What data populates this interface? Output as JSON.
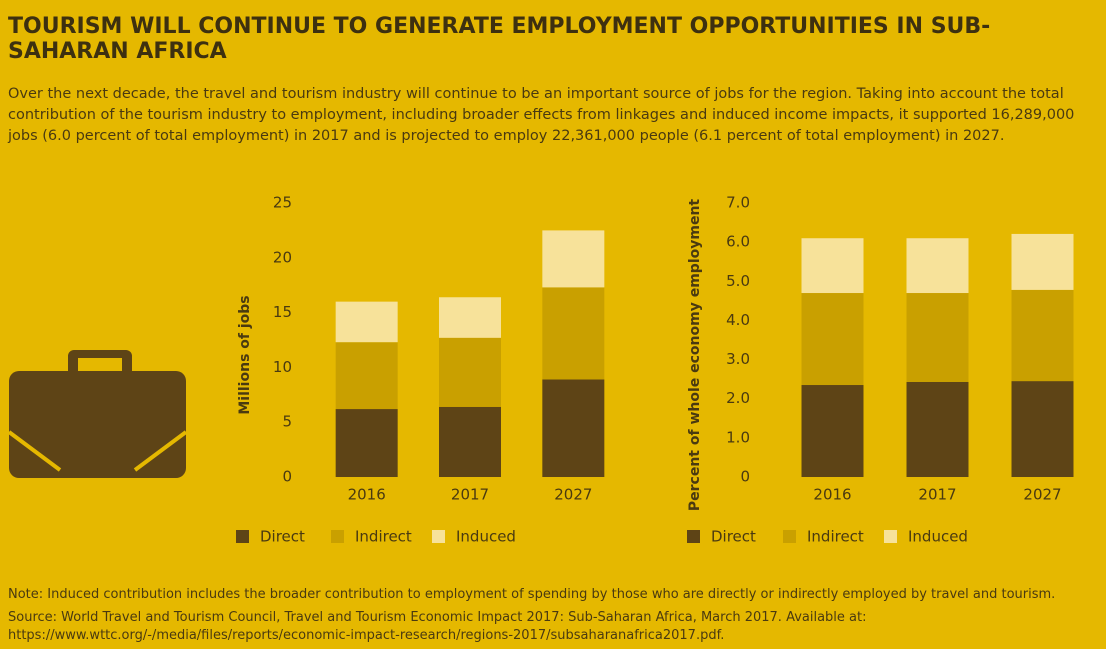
{
  "header": {
    "title": "TOURISM WILL CONTINUE TO GENERATE EMPLOYMENT OPPORTUNITIES IN SUB-SAHARAN AFRICA",
    "description": "Over the next decade, the travel and tourism industry will continue to be an important source of jobs for the region. Taking into account the total contribution of the tourism industry to employment, including broader effects from linkages and induced income impacts, it supported 16,289,000 jobs (6.0 percent of total employment) in 2017 and is projected to employ 22,361,000 people (6.1 percent of total employment) in 2027."
  },
  "chart_data": [
    {
      "type": "stacked_bar",
      "ylabel": "Millions of jobs",
      "categories": [
        "2016",
        "2017",
        "2027"
      ],
      "series": [
        {
          "name": "Direct",
          "color": "#5e4416",
          "values": [
            6.2,
            6.4,
            8.9
          ]
        },
        {
          "name": "Indirect",
          "color": "#c9a000",
          "values": [
            6.1,
            6.3,
            8.4
          ]
        },
        {
          "name": "Induced",
          "color": "#f7e29a",
          "values": [
            3.7,
            3.7,
            5.2
          ]
        }
      ],
      "ylim": [
        0,
        25
      ],
      "yticks": [
        0,
        5,
        10,
        15,
        20,
        25
      ]
    },
    {
      "type": "stacked_bar",
      "ylabel": "Percent of whole economy employment",
      "categories": [
        "2016",
        "2017",
        "2027"
      ],
      "series": [
        {
          "name": "Direct",
          "color": "#5e4416",
          "values": [
            2.35,
            2.43,
            2.45
          ]
        },
        {
          "name": "Indirect",
          "color": "#c9a000",
          "values": [
            2.35,
            2.27,
            2.33
          ]
        },
        {
          "name": "Induced",
          "color": "#f7e29a",
          "values": [
            1.4,
            1.4,
            1.43
          ]
        }
      ],
      "ylim": [
        0,
        7
      ],
      "yticks": [
        0,
        {
          "value": 1,
          "label": "1.0"
        },
        {
          "value": 2,
          "label": "2.0"
        },
        {
          "value": 3,
          "label": "3.0"
        },
        {
          "value": 4,
          "label": "4.0"
        },
        {
          "value": 5,
          "label": "5.0"
        },
        {
          "value": 6,
          "label": "6.0"
        },
        {
          "value": 7,
          "label": "7.0"
        }
      ]
    }
  ],
  "footer": {
    "note": "Note: Induced contribution includes the broader contribution to employment of spending by those who are directly or indirectly employed by travel and tourism.",
    "source": "Source: World Travel and Tourism Council, Travel and Tourism Economic Impact 2017: Sub-Saharan Africa, March 2017. Available at: https://www.wttc.org/-/media/files/reports/economic-impact-research/regions-2017/subsaharanafrica2017.pdf."
  }
}
